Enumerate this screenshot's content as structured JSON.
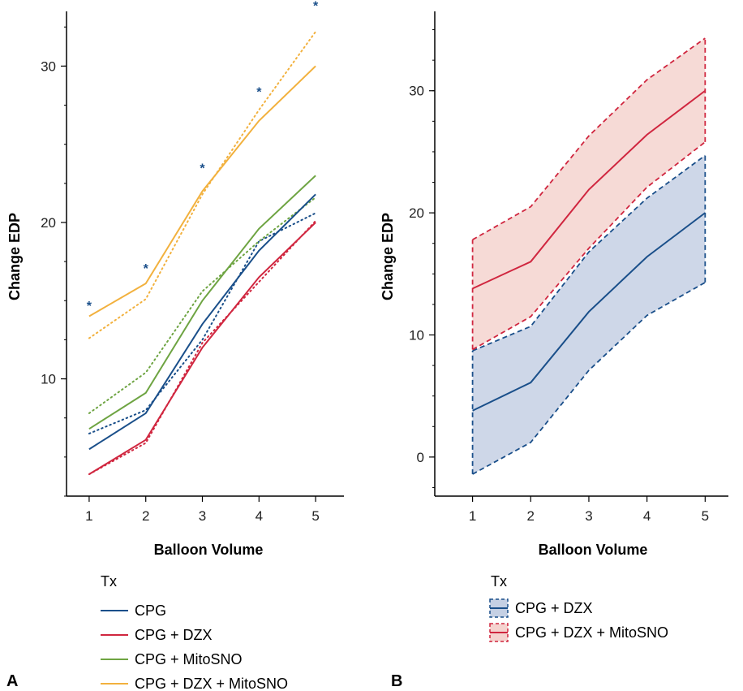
{
  "chart_data": [
    {
      "panel_label": "A",
      "type": "line",
      "xlabel": "Balloon Volume",
      "ylabel": "Change EDP",
      "x": [
        1,
        2,
        3,
        4,
        5
      ],
      "xticks": [
        "1",
        "2",
        "3",
        "4",
        "5"
      ],
      "yticks": [
        "10",
        "20",
        "30"
      ],
      "ylim": [
        2.5,
        33.5
      ],
      "xlim": [
        0.6,
        5.5
      ],
      "legend_title": "Tx",
      "legend_position": "bottom",
      "series": [
        {
          "name": "CPG",
          "color": "#1a4f8a",
          "values": [
            5.5,
            7.8,
            13.5,
            18.2,
            21.8
          ],
          "dotted": [
            6.5,
            8.0,
            12.5,
            18.8,
            20.6
          ]
        },
        {
          "name": "CPG + DZX",
          "color": "#d0263f",
          "values": [
            3.9,
            6.1,
            12.0,
            16.5,
            20.0
          ],
          "dotted": [
            3.9,
            5.9,
            12.3,
            16.2,
            20.1
          ]
        },
        {
          "name": "CPG + MitoSNO",
          "color": "#6ea442",
          "values": [
            6.8,
            9.1,
            15.0,
            19.6,
            23.0
          ],
          "dotted": [
            7.8,
            10.4,
            15.6,
            18.8,
            21.6
          ]
        },
        {
          "name": "CPG + DZX + MitoSNO",
          "color": "#f2b13e",
          "values": [
            14.0,
            16.1,
            22.0,
            26.5,
            30.0
          ],
          "dotted": [
            12.6,
            15.1,
            21.8,
            27.2,
            32.2
          ]
        }
      ],
      "significance_markers": [
        {
          "x": 1,
          "y": 14.8,
          "label": "*"
        },
        {
          "x": 2,
          "y": 17.2,
          "label": "*"
        },
        {
          "x": 3,
          "y": 23.6,
          "label": "*"
        },
        {
          "x": 4,
          "y": 28.5,
          "label": "*"
        },
        {
          "x": 5,
          "y": 34.0,
          "label": "*"
        }
      ]
    },
    {
      "panel_label": "B",
      "type": "area",
      "xlabel": "Balloon Volume",
      "ylabel": "Change EDP",
      "x": [
        1,
        2,
        3,
        4,
        5
      ],
      "xticks": [
        "1",
        "2",
        "3",
        "4",
        "5"
      ],
      "yticks": [
        "0",
        "10",
        "20",
        "30"
      ],
      "ylim": [
        -3.2,
        36.5
      ],
      "xlim": [
        0.35,
        5.4
      ],
      "legend_title": "Tx",
      "legend_position": "bottom",
      "series": [
        {
          "name": "CPG + DZX",
          "color": "#1a4f8a",
          "fill": "#c5d0e4",
          "values": [
            3.8,
            6.1,
            11.9,
            16.4,
            20.0
          ],
          "lower": [
            -1.4,
            1.2,
            7.1,
            11.6,
            14.3
          ],
          "upper": [
            8.7,
            10.7,
            16.8,
            21.2,
            24.7
          ]
        },
        {
          "name": "CPG + DZX + MitoSNO",
          "color": "#d0263f",
          "fill": "#f5d3cf",
          "values": [
            13.8,
            16.0,
            21.9,
            26.4,
            30.0
          ],
          "lower": [
            8.8,
            11.5,
            17.1,
            22.1,
            25.8
          ],
          "upper": [
            17.8,
            20.5,
            26.3,
            30.9,
            34.3
          ]
        }
      ]
    }
  ]
}
